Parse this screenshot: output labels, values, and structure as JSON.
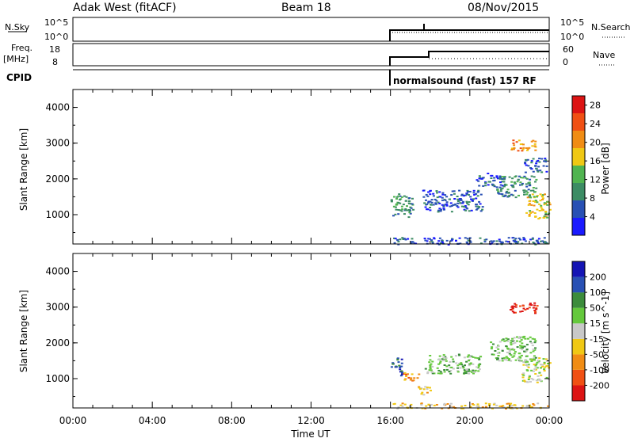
{
  "header": {
    "station": "Adak West (fitACF)",
    "beam": "Beam 18",
    "date": "08/Nov/2015"
  },
  "colors": {
    "power": [
      "#1a1aff",
      "#2850b4",
      "#3c8c64",
      "#50b450",
      "#f0c814",
      "#f08c14",
      "#f05014",
      "#dc1414"
    ],
    "velocity": [
      "#dc1414",
      "#f05014",
      "#f08c14",
      "#f0c814",
      "#c8c8c8",
      "#64c83c",
      "#3c8c3c",
      "#2850b4",
      "#1414b4"
    ],
    "data_tint": "#ffffff"
  },
  "sky_panel": {
    "left_label": "N.Sky",
    "right_label": "N.Search",
    "left_ticks": [
      "10^5",
      "10^0"
    ],
    "right_ticks": [
      "10^5",
      "10^0"
    ]
  },
  "freq_panel": {
    "left_label_1": "Freq.",
    "left_label_2": "[MHz]",
    "right_label": "Nave",
    "left_ticks": [
      "18",
      "8"
    ],
    "right_ticks": [
      "60",
      "0"
    ]
  },
  "cpid_panel": {
    "label": "CPID",
    "program": "normalsound (fast) 157 RF"
  },
  "chart_data": [
    {
      "type": "heatmap",
      "ylabel": "Slant Range [km]",
      "xlabel": "",
      "xlim": [
        0,
        24
      ],
      "ylim": [
        180,
        4500
      ],
      "yticks": [
        "1000",
        "2000",
        "3000",
        "4000"
      ],
      "colorbar": {
        "label": "Power [dB]",
        "ticks": [
          "4",
          "8",
          "12",
          "16",
          "20",
          "24",
          "28"
        ],
        "range": [
          0,
          30
        ]
      },
      "regions": [
        {
          "t0": 16.0,
          "t1": 17.1,
          "r0": 950,
          "r1": 1600,
          "level": 2
        },
        {
          "t0": 16.1,
          "t1": 23.9,
          "r0": 180,
          "r1": 380,
          "level": 1
        },
        {
          "t0": 17.6,
          "t1": 20.6,
          "r0": 1100,
          "r1": 1700,
          "level": 1
        },
        {
          "t0": 20.3,
          "t1": 21.8,
          "r0": 1800,
          "r1": 2200,
          "level": 1
        },
        {
          "t0": 21.3,
          "t1": 23.3,
          "r0": 1500,
          "r1": 2100,
          "level": 2
        },
        {
          "t0": 22.8,
          "t1": 24.0,
          "r0": 900,
          "r1": 1600,
          "level": 4
        },
        {
          "t0": 22.0,
          "t1": 23.3,
          "r0": 2800,
          "r1": 3100,
          "level": 5
        },
        {
          "t0": 22.7,
          "t1": 23.9,
          "r0": 2200,
          "r1": 2600,
          "level": 1
        }
      ]
    },
    {
      "type": "heatmap",
      "ylabel": "Slant Range [km]",
      "xlabel": "Time UT",
      "xlim": [
        0,
        24
      ],
      "ylim": [
        180,
        4500
      ],
      "yticks": [
        "1000",
        "2000",
        "3000",
        "4000"
      ],
      "xticks": [
        "00:00",
        "04:00",
        "08:00",
        "12:00",
        "16:00",
        "20:00",
        "00:00"
      ],
      "colorbar": {
        "label": "Velocity [m s^-1]",
        "ticks": [
          "200",
          "100",
          "50",
          "15",
          "-15",
          "-50",
          "-100",
          "-200"
        ],
        "range": [
          -250,
          250
        ]
      },
      "regions": [
        {
          "t0": 16.0,
          "t1": 16.6,
          "r0": 1100,
          "r1": 1600,
          "level": 7
        },
        {
          "t0": 16.6,
          "t1": 17.4,
          "r0": 950,
          "r1": 1200,
          "level": 2
        },
        {
          "t0": 16.1,
          "t1": 23.9,
          "r0": 180,
          "r1": 330,
          "level": 3
        },
        {
          "t0": 17.7,
          "t1": 20.5,
          "r0": 1150,
          "r1": 1700,
          "level": 5
        },
        {
          "t0": 21.0,
          "t1": 23.3,
          "r0": 1500,
          "r1": 2200,
          "level": 5
        },
        {
          "t0": 22.6,
          "t1": 24.0,
          "r0": 900,
          "r1": 1600,
          "level": 4
        },
        {
          "t0": 22.0,
          "t1": 23.4,
          "r0": 2850,
          "r1": 3150,
          "level": 0
        },
        {
          "t0": 17.3,
          "t1": 18.0,
          "r0": 550,
          "r1": 800,
          "level": 3
        }
      ]
    }
  ]
}
